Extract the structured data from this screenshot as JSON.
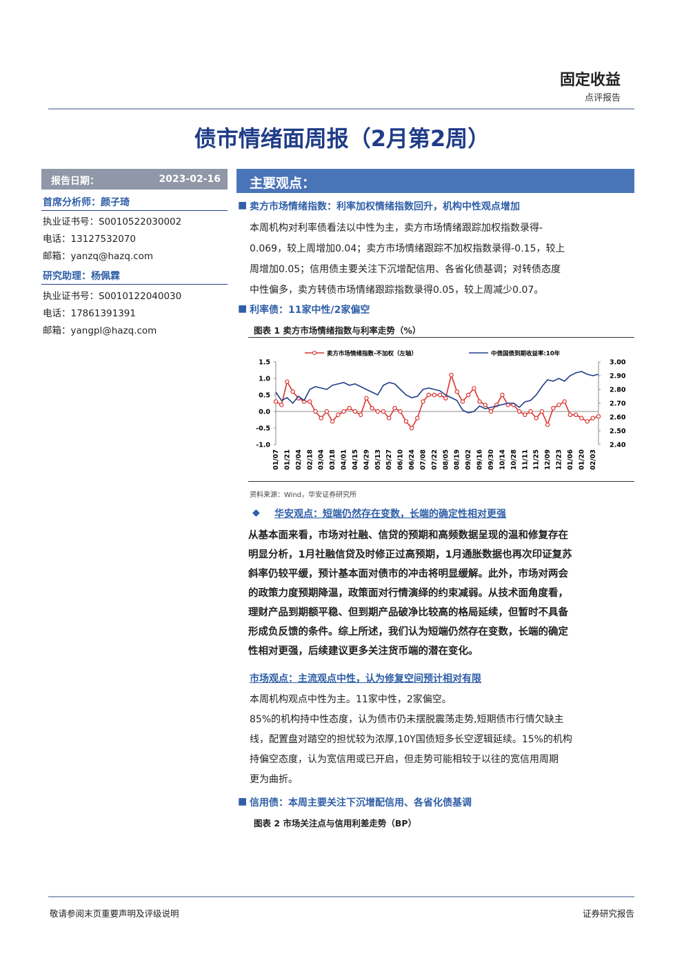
{
  "header": {
    "section": "固定收益",
    "subtitle": "点评报告"
  },
  "title": "债市情绪面周报（2月第2周）",
  "sidebar": {
    "date_label": "报告日期：",
    "date": "2023-02-16",
    "analyst": "首席分析师：颜子琦",
    "analyst_lines": [
      "执业证书号：S0010522030002",
      "电话：13127532070",
      "邮箱：yanzq@hazq.com"
    ],
    "assistant": "研究助理：杨佩霖",
    "assistant_lines": [
      "执业证书号：S0010122040030",
      "电话：17861391391",
      "邮箱：yangpl@hazq.com"
    ]
  },
  "main_header": "主要观点：",
  "sections": [
    {
      "heading": "卖方市场情绪指数：利率加权情绪指数回升，机构中性观点增加",
      "body": [
        "本周机构对利率债看法以中性为主，卖方市场情绪跟踪加权指数录得-",
        "0.069，较上周增加0.04；卖方市场情绪跟踪不加权指数录得-0.15，较上",
        "周增加0.05；信用债主要关注下沉增配信用、各省化债基调；对转债态度",
        "中性偏多，卖方转债市场情绪跟踪指数录得0.05，较上周减少0.07。"
      ]
    },
    {
      "heading": "利率债：11家中性/2家偏空",
      "figure_title": "图表 1 卖方市场情绪指数与利率走势（%）",
      "source": "资料来源：Wind，华安证券研究所",
      "view_heading": "华安观点：短端仍然存在变数，长端的确定性相对更强",
      "view_body": [
        "从基本面来看，市场对社融、信贷的预期和高频数据呈现的温和修复存在",
        "明显分析，1月社融信贷及时修正过高预期，1月通胀数据也再次印证复苏",
        "斜率仍较平缓，预计基本面对债市的冲击将明显缓解。此外，市场对两会",
        "的政策力度预期降温，政策面对行情演绎的约束减弱。从技术面角度看，",
        "理财产品到期额平稳、但到期产品破净比较高的格局延续，但暂时不具备",
        "形成负反馈的条件。综上所述，我们认为短端仍然存在变数，长端的确定",
        "性相对更强，后续建议更多关注货币端的潜在变化。"
      ],
      "market_heading": "市场观点：主流观点中性，认为修复空间预计相对有限",
      "market_body": [
        "本周机构观点中性为主。11家中性，2家偏空。",
        "85%的机构持中性态度，认为债市仍未摆脱震荡走势,短期债市行情欠缺主",
        "线，配置盘对踏空的担忧较为浓厚,10Y国债短多长空逻辑延续。15%的机构",
        "持偏空态度，认为宽信用或已开启，但走势可能相较于以往的宽信用周期",
        "更为曲折。"
      ]
    },
    {
      "heading": "信用债：本周主要关注下沉增配信用、各省化债基调",
      "figure_title": "图表 2 市场关注点与信用利差走势（BP）"
    }
  ],
  "footer": {
    "left": "敬请参阅末页重要声明及评级说明",
    "right": "证券研究报告"
  },
  "chart_data": {
    "type": "line",
    "categories": [
      "01/07",
      null,
      "01/21",
      null,
      "02/04",
      null,
      "02/18",
      null,
      "03/04",
      null,
      "03/18",
      null,
      "04/01",
      null,
      "04/15",
      null,
      "04/29",
      null,
      "05/13",
      null,
      "05/27",
      null,
      "06/10",
      null,
      "06/24",
      null,
      "07/08",
      null,
      "07/22",
      null,
      "08/05",
      null,
      "08/19",
      null,
      "09/02",
      null,
      "09/16",
      null,
      "09/30",
      null,
      "10/14",
      null,
      "10/28",
      null,
      "11/11",
      null,
      "11/25",
      null,
      "12/09",
      null,
      "12/23",
      null,
      "01/06",
      null,
      "01/20",
      null,
      "02/03",
      null
    ],
    "series": [
      {
        "name": "卖方市场情绪指数-不加权（左轴）",
        "color": "#d9302c",
        "values": [
          0.3,
          0.2,
          0.9,
          0.6,
          0.4,
          0.3,
          0.3,
          0.0,
          -0.2,
          0.0,
          -0.3,
          -0.1,
          0.0,
          0.1,
          0.0,
          -0.1,
          0.4,
          0.1,
          0.0,
          0.0,
          -0.2,
          0.1,
          0.0,
          -0.3,
          -0.5,
          -0.2,
          0.3,
          0.5,
          0.5,
          0.5,
          0.4,
          1.1,
          0.6,
          0.3,
          0.5,
          0.7,
          0.3,
          0.2,
          0.0,
          0.2,
          0.5,
          0.2,
          0.2,
          0.0,
          -0.1,
          0.0,
          -0.2,
          0.0,
          -0.4,
          0.1,
          0.2,
          0.3,
          -0.1,
          -0.1,
          -0.2,
          -0.3,
          -0.2,
          -0.15
        ]
      },
      {
        "name": "中债国债到期收益率:10年",
        "color": "#1f3c88",
        "axis": "y2",
        "values": [
          2.78,
          2.72,
          2.74,
          2.7,
          2.75,
          2.72,
          2.8,
          2.82,
          2.81,
          2.8,
          2.83,
          2.84,
          2.85,
          2.83,
          2.84,
          2.82,
          2.8,
          2.78,
          2.76,
          2.83,
          2.85,
          2.84,
          2.8,
          2.76,
          2.74,
          2.75,
          2.8,
          2.81,
          2.8,
          2.79,
          2.76,
          2.74,
          2.72,
          2.65,
          2.63,
          2.64,
          2.68,
          2.66,
          2.67,
          2.68,
          2.69,
          2.7,
          2.7,
          2.67,
          2.71,
          2.72,
          2.76,
          2.82,
          2.87,
          2.86,
          2.88,
          2.86,
          2.9,
          2.92,
          2.93,
          2.91,
          2.9,
          2.91
        ]
      }
    ],
    "ylim": [
      -1,
      1.5
    ],
    "yticks": [
      {
        "value": -1,
        "label": "-1.0"
      },
      -0.5,
      {
        "value": 0,
        "label": "0.0"
      },
      0.5,
      {
        "value": 1,
        "label": "1.0"
      },
      1.5
    ],
    "y2lim": [
      2.4,
      3.0
    ],
    "y2ticks": [
      {
        "value": 2.4,
        "label": "2.40"
      },
      {
        "value": 2.5,
        "label": "2.50"
      },
      {
        "value": 2.6,
        "label": "2.60"
      },
      {
        "value": 2.7,
        "label": "2.70"
      },
      {
        "value": 2.8,
        "label": "2.80"
      },
      {
        "value": 2.9,
        "label": "2.90"
      },
      {
        "value": 3.0,
        "label": "3.00"
      }
    ],
    "legend": "top",
    "markers": true
  }
}
